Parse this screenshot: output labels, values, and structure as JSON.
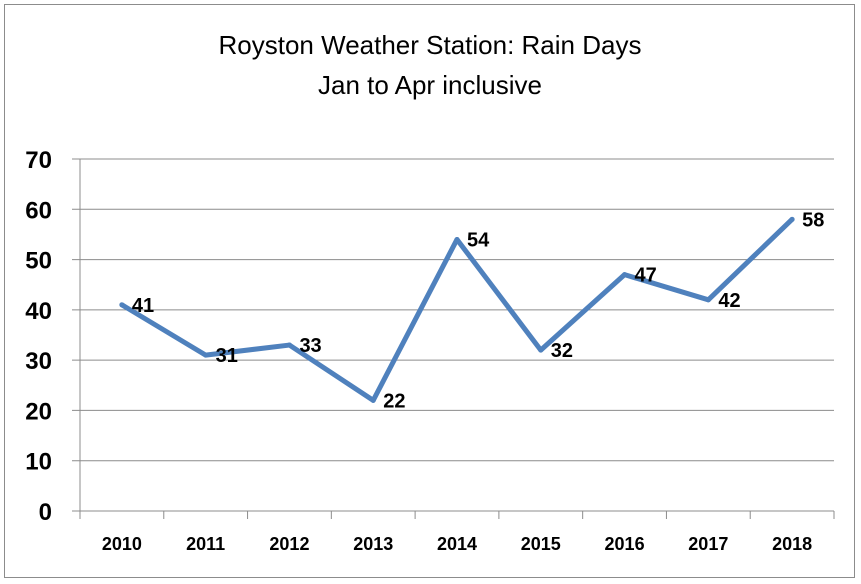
{
  "chart_data": {
    "type": "line",
    "title_lines": [
      "Royston Weather Station:  Rain Days",
      "Jan to Apr inclusive"
    ],
    "categories": [
      "2010",
      "2011",
      "2012",
      "2013",
      "2014",
      "2015",
      "2016",
      "2017",
      "2018"
    ],
    "series": [
      {
        "values": [
          41,
          31,
          33,
          22,
          54,
          32,
          47,
          42,
          58
        ],
        "color": "#4f81bd"
      }
    ],
    "data_labels": [
      "41",
      "31",
      "33",
      "22",
      "54",
      "32",
      "47",
      "42",
      "58"
    ],
    "yticks": [
      "0",
      "10",
      "20",
      "30",
      "40",
      "50",
      "60",
      "70"
    ],
    "ylim": [
      0,
      70
    ],
    "grid": true,
    "legend": "none",
    "colors": {
      "gridline": "#8c8c8c",
      "line": "#4f81bd"
    }
  }
}
